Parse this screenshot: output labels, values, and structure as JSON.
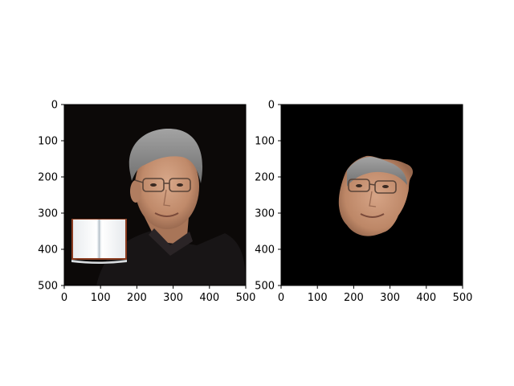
{
  "chart_data": [
    {
      "type": "image",
      "panel": "left",
      "xlim": [
        0,
        500
      ],
      "ylim": [
        500,
        0
      ],
      "x_ticks": [
        0,
        100,
        200,
        300,
        400,
        500
      ],
      "y_ticks": [
        0,
        100,
        200,
        300,
        400,
        500
      ],
      "x_tick_labels": [
        "0",
        "100",
        "200",
        "300",
        "400",
        "500"
      ],
      "y_tick_labels": [
        "0",
        "100",
        "200",
        "300",
        "400",
        "500"
      ],
      "content": "photo of a grey-haired man wearing glasses and a dark jacket, with an open book image pasted at lower left",
      "background_color": "#0c0908",
      "overlay_book": {
        "x": [
          20,
          170
        ],
        "y": [
          320,
          430
        ]
      }
    },
    {
      "type": "image",
      "panel": "right",
      "xlim": [
        0,
        500
      ],
      "ylim": [
        500,
        0
      ],
      "x_ticks": [
        0,
        100,
        200,
        300,
        400,
        500
      ],
      "y_ticks": [
        0,
        100,
        200,
        300,
        400,
        500
      ],
      "x_tick_labels": [
        "0",
        "100",
        "200",
        "300",
        "400",
        "500"
      ],
      "y_tick_labels": [
        "0",
        "100",
        "200",
        "300",
        "400",
        "500"
      ],
      "content": "segmented face region of the same man on a black background",
      "background_color": "#000000"
    }
  ],
  "colors": {
    "skin": "#c99474",
    "hair": "#8e8e8e",
    "jacket": "#181516",
    "book_page": "#f2f4f6",
    "book_edge": "#8b3c20"
  }
}
